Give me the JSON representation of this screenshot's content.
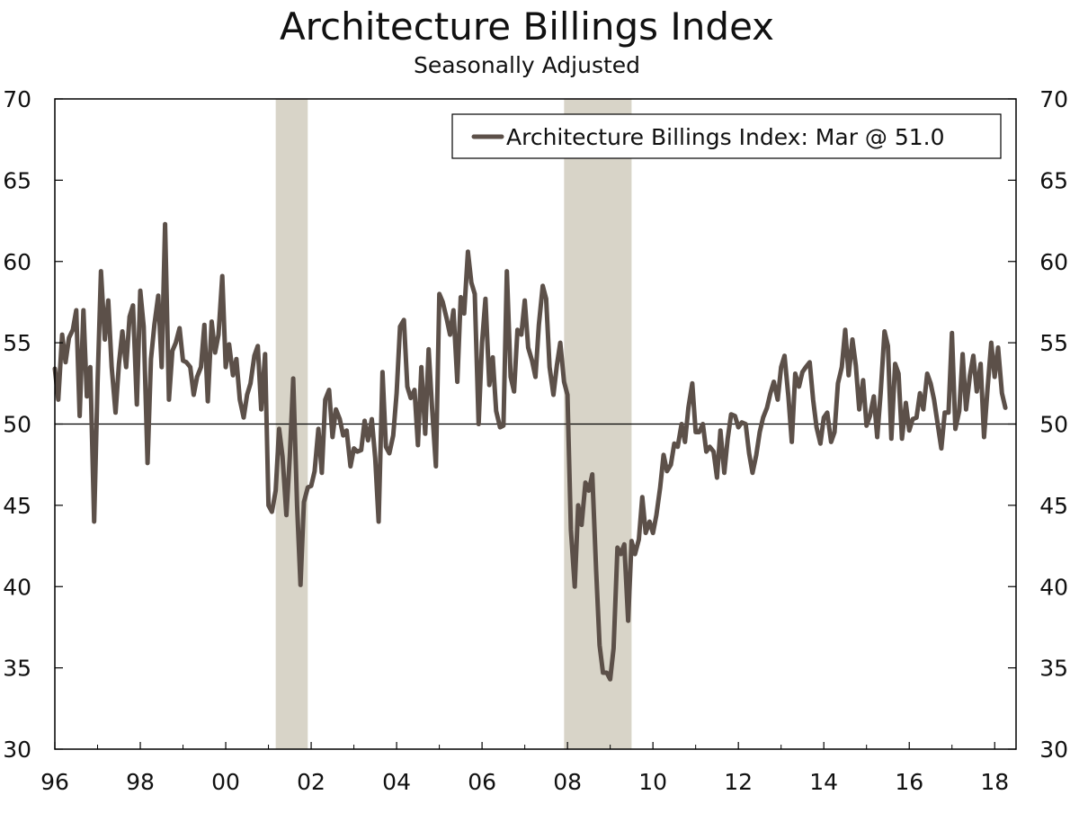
{
  "chart_data": {
    "type": "line",
    "title": "Architecture Billings Index",
    "subtitle": "Seasonally Adjusted",
    "xlabel": "",
    "ylabel": "",
    "ylim": [
      30,
      70
    ],
    "yticks": [
      30,
      35,
      40,
      45,
      50,
      55,
      60,
      65,
      70
    ],
    "xlim": [
      1996.0,
      2018.5
    ],
    "xticks": [
      {
        "value": 1996,
        "label": "96"
      },
      {
        "value": 1998,
        "label": "98"
      },
      {
        "value": 2000,
        "label": "00"
      },
      {
        "value": 2002,
        "label": "02"
      },
      {
        "value": 2004,
        "label": "04"
      },
      {
        "value": 2006,
        "label": "06"
      },
      {
        "value": 2008,
        "label": "08"
      },
      {
        "value": 2010,
        "label": "10"
      },
      {
        "value": 2012,
        "label": "12"
      },
      {
        "value": 2014,
        "label": "14"
      },
      {
        "value": 2016,
        "label": "16"
      },
      {
        "value": 2018,
        "label": "18"
      }
    ],
    "reference_line": 50,
    "recessions": [
      [
        2001.17,
        2001.92
      ],
      [
        2007.92,
        2009.5
      ]
    ],
    "legend": {
      "position": "top-right"
    },
    "grid": false,
    "colors": {
      "line": "#5c5049",
      "recession": "#d8d4c8"
    },
    "series": [
      {
        "name": "Architecture Billings Index: Mar @ 51.0",
        "points": [
          [
            1996.0,
            53.4
          ],
          [
            1996.08,
            51.5
          ],
          [
            1996.17,
            55.5
          ],
          [
            1996.25,
            53.8
          ],
          [
            1996.33,
            55.3
          ],
          [
            1996.42,
            55.8
          ],
          [
            1996.5,
            57.0
          ],
          [
            1996.58,
            50.5
          ],
          [
            1996.67,
            57.0
          ],
          [
            1996.75,
            51.7
          ],
          [
            1996.83,
            53.5
          ],
          [
            1996.92,
            44.0
          ],
          [
            1997.0,
            52.5
          ],
          [
            1997.08,
            59.4
          ],
          [
            1997.17,
            55.2
          ],
          [
            1997.25,
            57.6
          ],
          [
            1997.33,
            53.5
          ],
          [
            1997.42,
            50.7
          ],
          [
            1997.5,
            53.7
          ],
          [
            1997.58,
            55.7
          ],
          [
            1997.67,
            53.5
          ],
          [
            1997.75,
            56.6
          ],
          [
            1997.83,
            57.3
          ],
          [
            1997.92,
            51.2
          ],
          [
            1998.0,
            58.2
          ],
          [
            1998.08,
            56.0
          ],
          [
            1998.17,
            47.6
          ],
          [
            1998.25,
            54.0
          ],
          [
            1998.33,
            56.1
          ],
          [
            1998.42,
            57.9
          ],
          [
            1998.5,
            53.5
          ],
          [
            1998.58,
            62.3
          ],
          [
            1998.67,
            51.5
          ],
          [
            1998.75,
            54.5
          ],
          [
            1998.83,
            55.0
          ],
          [
            1998.92,
            55.9
          ],
          [
            1999.0,
            53.9
          ],
          [
            1999.08,
            53.8
          ],
          [
            1999.17,
            53.5
          ],
          [
            1999.25,
            51.8
          ],
          [
            1999.33,
            52.9
          ],
          [
            1999.42,
            53.5
          ],
          [
            1999.5,
            56.1
          ],
          [
            1999.58,
            51.4
          ],
          [
            1999.67,
            56.3
          ],
          [
            1999.75,
            54.4
          ],
          [
            1999.83,
            55.5
          ],
          [
            1999.92,
            59.1
          ],
          [
            2000.0,
            53.5
          ],
          [
            2000.08,
            54.9
          ],
          [
            2000.17,
            53.0
          ],
          [
            2000.25,
            54.0
          ],
          [
            2000.33,
            51.5
          ],
          [
            2000.42,
            50.4
          ],
          [
            2000.5,
            51.8
          ],
          [
            2000.58,
            52.5
          ],
          [
            2000.67,
            54.2
          ],
          [
            2000.75,
            54.8
          ],
          [
            2000.83,
            50.9
          ],
          [
            2000.92,
            54.3
          ],
          [
            2001.0,
            45.0
          ],
          [
            2001.08,
            44.6
          ],
          [
            2001.17,
            45.9
          ],
          [
            2001.25,
            49.7
          ],
          [
            2001.33,
            48.0
          ],
          [
            2001.42,
            44.4
          ],
          [
            2001.5,
            48.0
          ],
          [
            2001.58,
            52.8
          ],
          [
            2001.67,
            45.0
          ],
          [
            2001.75,
            40.1
          ],
          [
            2001.83,
            45.2
          ],
          [
            2001.92,
            46.1
          ],
          [
            2002.0,
            46.2
          ],
          [
            2002.08,
            47.1
          ],
          [
            2002.17,
            49.7
          ],
          [
            2002.25,
            47.0
          ],
          [
            2002.33,
            51.5
          ],
          [
            2002.42,
            52.1
          ],
          [
            2002.5,
            49.2
          ],
          [
            2002.58,
            50.9
          ],
          [
            2002.67,
            50.3
          ],
          [
            2002.75,
            49.3
          ],
          [
            2002.83,
            49.6
          ],
          [
            2002.92,
            47.4
          ],
          [
            2003.0,
            48.5
          ],
          [
            2003.08,
            48.3
          ],
          [
            2003.17,
            48.4
          ],
          [
            2003.25,
            50.2
          ],
          [
            2003.33,
            49.0
          ],
          [
            2003.42,
            50.3
          ],
          [
            2003.5,
            47.9
          ],
          [
            2003.58,
            44.0
          ],
          [
            2003.67,
            53.2
          ],
          [
            2003.75,
            48.6
          ],
          [
            2003.83,
            48.2
          ],
          [
            2003.92,
            49.3
          ],
          [
            2004.0,
            51.9
          ],
          [
            2004.08,
            56.0
          ],
          [
            2004.17,
            56.4
          ],
          [
            2004.25,
            52.3
          ],
          [
            2004.33,
            51.6
          ],
          [
            2004.42,
            52.1
          ],
          [
            2004.5,
            48.7
          ],
          [
            2004.58,
            53.5
          ],
          [
            2004.67,
            49.4
          ],
          [
            2004.75,
            54.6
          ],
          [
            2004.83,
            51.0
          ],
          [
            2004.92,
            47.4
          ],
          [
            2005.0,
            58.0
          ],
          [
            2005.08,
            57.5
          ],
          [
            2005.17,
            56.5
          ],
          [
            2005.25,
            55.5
          ],
          [
            2005.33,
            57.0
          ],
          [
            2005.42,
            52.6
          ],
          [
            2005.5,
            57.8
          ],
          [
            2005.58,
            56.8
          ],
          [
            2005.67,
            60.6
          ],
          [
            2005.75,
            58.7
          ],
          [
            2005.83,
            58.0
          ],
          [
            2005.92,
            50.0
          ],
          [
            2006.0,
            55.0
          ],
          [
            2006.08,
            57.7
          ],
          [
            2006.17,
            52.4
          ],
          [
            2006.25,
            54.1
          ],
          [
            2006.33,
            50.8
          ],
          [
            2006.42,
            49.8
          ],
          [
            2006.5,
            49.9
          ],
          [
            2006.58,
            59.4
          ],
          [
            2006.67,
            52.9
          ],
          [
            2006.75,
            52.0
          ],
          [
            2006.83,
            55.8
          ],
          [
            2006.92,
            55.5
          ],
          [
            2007.0,
            57.6
          ],
          [
            2007.08,
            54.7
          ],
          [
            2007.17,
            53.9
          ],
          [
            2007.25,
            52.9
          ],
          [
            2007.33,
            56.1
          ],
          [
            2007.42,
            58.5
          ],
          [
            2007.5,
            57.7
          ],
          [
            2007.58,
            53.5
          ],
          [
            2007.67,
            51.8
          ],
          [
            2007.75,
            53.6
          ],
          [
            2007.83,
            55.0
          ],
          [
            2007.92,
            52.6
          ],
          [
            2008.0,
            51.8
          ],
          [
            2008.08,
            43.5
          ],
          [
            2008.17,
            40.0
          ],
          [
            2008.25,
            45.0
          ],
          [
            2008.33,
            43.8
          ],
          [
            2008.42,
            46.4
          ],
          [
            2008.5,
            45.9
          ],
          [
            2008.58,
            46.9
          ],
          [
            2008.67,
            41.0
          ],
          [
            2008.75,
            36.4
          ],
          [
            2008.83,
            34.7
          ],
          [
            2008.92,
            34.7
          ],
          [
            2009.0,
            34.3
          ],
          [
            2009.08,
            36.2
          ],
          [
            2009.17,
            42.4
          ],
          [
            2009.25,
            42.0
          ],
          [
            2009.33,
            42.6
          ],
          [
            2009.42,
            37.9
          ],
          [
            2009.5,
            42.8
          ],
          [
            2009.58,
            42.0
          ],
          [
            2009.67,
            42.9
          ],
          [
            2009.75,
            45.5
          ],
          [
            2009.83,
            43.3
          ],
          [
            2009.92,
            44.0
          ],
          [
            2010.0,
            43.3
          ],
          [
            2010.08,
            44.4
          ],
          [
            2010.17,
            46.1
          ],
          [
            2010.25,
            48.1
          ],
          [
            2010.33,
            47.1
          ],
          [
            2010.42,
            47.5
          ],
          [
            2010.5,
            48.8
          ],
          [
            2010.58,
            48.6
          ],
          [
            2010.67,
            50.0
          ],
          [
            2010.75,
            48.9
          ],
          [
            2010.83,
            51.0
          ],
          [
            2010.92,
            52.5
          ],
          [
            2011.0,
            49.5
          ],
          [
            2011.08,
            49.5
          ],
          [
            2011.17,
            50.0
          ],
          [
            2011.25,
            48.3
          ],
          [
            2011.33,
            48.6
          ],
          [
            2011.42,
            48.3
          ],
          [
            2011.5,
            46.7
          ],
          [
            2011.58,
            49.6
          ],
          [
            2011.67,
            47.0
          ],
          [
            2011.75,
            49.1
          ],
          [
            2011.83,
            50.6
          ],
          [
            2011.92,
            50.5
          ],
          [
            2012.0,
            49.8
          ],
          [
            2012.08,
            50.1
          ],
          [
            2012.17,
            50.0
          ],
          [
            2012.25,
            48.2
          ],
          [
            2012.33,
            47.0
          ],
          [
            2012.42,
            48.1
          ],
          [
            2012.5,
            49.5
          ],
          [
            2012.58,
            50.4
          ],
          [
            2012.67,
            51.0
          ],
          [
            2012.75,
            51.9
          ],
          [
            2012.83,
            52.6
          ],
          [
            2012.92,
            51.5
          ],
          [
            2013.0,
            53.5
          ],
          [
            2013.08,
            54.2
          ],
          [
            2013.17,
            51.7
          ],
          [
            2013.25,
            48.9
          ],
          [
            2013.33,
            53.1
          ],
          [
            2013.42,
            52.3
          ],
          [
            2013.5,
            53.2
          ],
          [
            2013.58,
            53.5
          ],
          [
            2013.67,
            53.8
          ],
          [
            2013.75,
            51.5
          ],
          [
            2013.83,
            49.8
          ],
          [
            2013.92,
            48.8
          ],
          [
            2014.0,
            50.4
          ],
          [
            2014.08,
            50.7
          ],
          [
            2014.17,
            48.9
          ],
          [
            2014.25,
            49.5
          ],
          [
            2014.33,
            52.5
          ],
          [
            2014.42,
            53.5
          ],
          [
            2014.5,
            55.8
          ],
          [
            2014.58,
            53.0
          ],
          [
            2014.67,
            55.2
          ],
          [
            2014.75,
            53.6
          ],
          [
            2014.83,
            50.9
          ],
          [
            2014.92,
            52.7
          ],
          [
            2015.0,
            49.9
          ],
          [
            2015.08,
            50.5
          ],
          [
            2015.17,
            51.7
          ],
          [
            2015.25,
            49.2
          ],
          [
            2015.33,
            51.9
          ],
          [
            2015.42,
            55.7
          ],
          [
            2015.5,
            54.8
          ],
          [
            2015.58,
            49.1
          ],
          [
            2015.67,
            53.7
          ],
          [
            2015.75,
            53.1
          ],
          [
            2015.83,
            49.1
          ],
          [
            2015.92,
            51.3
          ],
          [
            2016.0,
            49.6
          ],
          [
            2016.08,
            50.3
          ],
          [
            2016.17,
            50.4
          ],
          [
            2016.25,
            51.9
          ],
          [
            2016.33,
            50.9
          ],
          [
            2016.42,
            53.1
          ],
          [
            2016.5,
            52.5
          ],
          [
            2016.58,
            51.5
          ],
          [
            2016.67,
            49.9
          ],
          [
            2016.75,
            48.5
          ],
          [
            2016.83,
            50.7
          ],
          [
            2016.92,
            50.7
          ],
          [
            2017.0,
            55.6
          ],
          [
            2017.08,
            49.7
          ],
          [
            2017.17,
            50.8
          ],
          [
            2017.25,
            54.3
          ],
          [
            2017.33,
            50.9
          ],
          [
            2017.42,
            53.0
          ],
          [
            2017.5,
            54.2
          ],
          [
            2017.58,
            52.0
          ],
          [
            2017.67,
            53.7
          ],
          [
            2017.75,
            49.2
          ],
          [
            2017.83,
            52.1
          ],
          [
            2017.92,
            55.0
          ],
          [
            2018.0,
            52.9
          ],
          [
            2018.08,
            54.7
          ],
          [
            2018.17,
            51.9
          ],
          [
            2018.25,
            51.0
          ]
        ]
      }
    ]
  }
}
